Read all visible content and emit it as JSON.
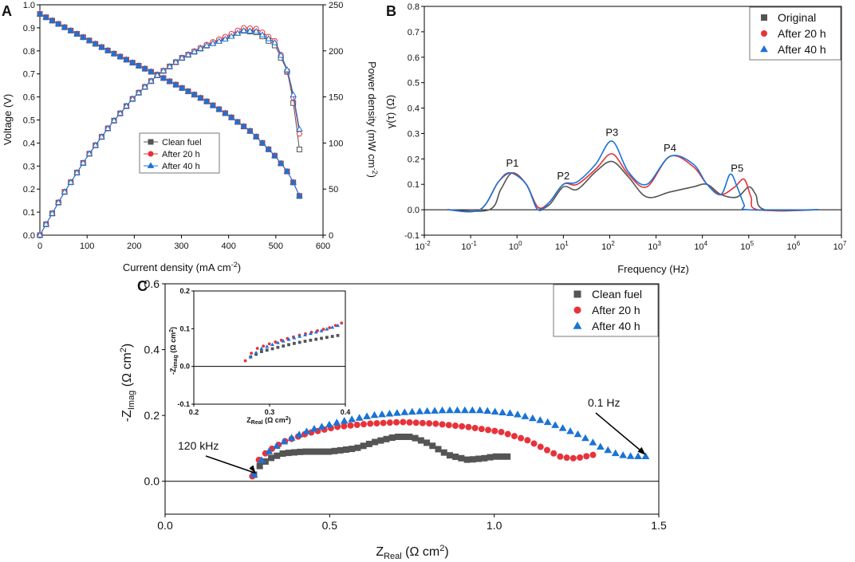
{
  "colors": {
    "clean": "#555555",
    "after20": "#e8323a",
    "after40": "#1a73d6",
    "axis": "#000000"
  },
  "chart_data": [
    {
      "panel": "A",
      "type": "line",
      "xlabel": "Current density (mA cm⁻²)",
      "ylabel_left": "Voltage (V)",
      "ylabel_right": "Power density (mW cm⁻²)",
      "xlim": [
        0,
        600
      ],
      "ylim_left": [
        0,
        1.0
      ],
      "ylim_right": [
        0,
        250
      ],
      "x_ticks": [
        "0",
        "100",
        "200",
        "300",
        "400",
        "500",
        "600"
      ],
      "y_left_ticks": [
        "0.0",
        "0.1",
        "0.2",
        "0.3",
        "0.4",
        "0.5",
        "0.6",
        "0.7",
        "0.8",
        "0.9",
        "1.0"
      ],
      "y_right_ticks": [
        "0",
        "50",
        "100",
        "150",
        "200",
        "250"
      ],
      "legend": [
        "Clean fuel",
        "After 20 h",
        "After 40 h"
      ],
      "voltage_curve": {
        "x": [
          0,
          50,
          100,
          150,
          200,
          250,
          300,
          350,
          400,
          450,
          500,
          530,
          550
        ],
        "y": [
          0.96,
          0.905,
          0.85,
          0.795,
          0.745,
          0.695,
          0.64,
          0.585,
          0.52,
          0.445,
          0.34,
          0.26,
          0.17
        ]
      },
      "power_curves": {
        "x": [
          0,
          50,
          100,
          150,
          200,
          250,
          300,
          350,
          400,
          430,
          460,
          500,
          530,
          550
        ],
        "clean": [
          0,
          45,
          85,
          120,
          150,
          174,
          192,
          205,
          215,
          222,
          220,
          205,
          170,
          93
        ],
        "after20": [
          0,
          45,
          85,
          120,
          150,
          174,
          192,
          206,
          217,
          225,
          224,
          210,
          170,
          110
        ],
        "after40": [
          0,
          45,
          85,
          120,
          150,
          174,
          192,
          205,
          214,
          222,
          221,
          208,
          172,
          115
        ]
      }
    },
    {
      "panel": "B",
      "type": "line",
      "xlabel": "Frequency (Hz)",
      "ylabel": "γ(τ) (Ω)",
      "xlim_log10": [
        -2,
        7
      ],
      "ylim": [
        -0.1,
        0.8
      ],
      "x_ticks_exp": [
        "-2",
        "-1",
        "0",
        "1",
        "2",
        "3",
        "4",
        "5",
        "6",
        "7"
      ],
      "y_ticks": [
        "-0.1",
        "0.0",
        "0.1",
        "0.2",
        "0.3",
        "0.4",
        "0.5",
        "0.6",
        "0.7",
        "0.8"
      ],
      "legend": [
        "Original",
        "After 20 h",
        "After 40 h"
      ],
      "annotations": [
        {
          "label": "P1",
          "log10_f": -0.1,
          "y": 0.17
        },
        {
          "label": "P2",
          "log10_f": 1.0,
          "y": 0.12
        },
        {
          "label": "P3",
          "log10_f": 2.05,
          "y": 0.29
        },
        {
          "label": "P4",
          "log10_f": 3.3,
          "y": 0.23
        },
        {
          "label": "P5",
          "log10_f": 4.75,
          "y": 0.15
        }
      ],
      "series": [
        {
          "name": "Original",
          "log10_f": [
            -0.6,
            -0.35,
            -0.1,
            0.2,
            0.45,
            0.7,
            1.0,
            1.3,
            1.7,
            2.05,
            2.4,
            2.8,
            3.3,
            3.8,
            4.1,
            4.4,
            4.75,
            5.0,
            5.15,
            5.35
          ],
          "values": [
            0,
            0.08,
            0.145,
            0.1,
            0.01,
            0.02,
            0.09,
            0.08,
            0.15,
            0.19,
            0.13,
            0.05,
            0.07,
            0.09,
            0.1,
            0.06,
            0.05,
            0.09,
            0.06,
            0
          ]
        },
        {
          "name": "After 20 h",
          "log10_f": [
            -0.8,
            -0.4,
            -0.1,
            0.2,
            0.45,
            0.7,
            1.0,
            1.3,
            1.7,
            2.05,
            2.4,
            2.8,
            3.3,
            3.8,
            4.1,
            4.4,
            4.7,
            4.9,
            5.05,
            5.2
          ],
          "values": [
            0,
            0.11,
            0.145,
            0.1,
            0.01,
            0.03,
            0.1,
            0.1,
            0.16,
            0.22,
            0.14,
            0.09,
            0.21,
            0.17,
            0.1,
            0.06,
            0.09,
            0.12,
            0.05,
            0
          ]
        },
        {
          "name": "After 40 h",
          "log10_f": [
            -0.8,
            -0.4,
            -0.15,
            0.2,
            0.45,
            0.7,
            1.0,
            1.3,
            1.7,
            2.05,
            2.4,
            2.8,
            3.3,
            3.8,
            4.1,
            4.4,
            4.6,
            4.75,
            4.9,
            5.0
          ],
          "values": [
            0,
            0.11,
            0.145,
            0.1,
            0.0,
            0.03,
            0.1,
            0.11,
            0.18,
            0.27,
            0.15,
            0.1,
            0.21,
            0.18,
            0.1,
            0.06,
            0.14,
            0.09,
            0.02,
            0
          ]
        }
      ]
    },
    {
      "panel": "C",
      "type": "scatter",
      "xlabel": "Z_Real (Ω cm²)",
      "ylabel": "-Z_Imag (Ω cm²)",
      "xlim": [
        0,
        1.5
      ],
      "ylim": [
        -0.1,
        0.6
      ],
      "x_ticks": [
        "0.0",
        "0.5",
        "1.0",
        "1.5"
      ],
      "y_ticks": [
        "0.0",
        "0.2",
        "0.4",
        "0.6"
      ],
      "legend": [
        "Clean fuel",
        "After 20 h",
        "After 40 h"
      ],
      "annotations": [
        {
          "label": "120 kHz",
          "x": 0.27,
          "y": 0.015
        },
        {
          "label": "0.1 Hz",
          "x": 1.46,
          "y": 0.075
        }
      ],
      "series": [
        {
          "name": "Clean fuel",
          "x": [
            0.27,
            0.29,
            0.32,
            0.36,
            0.42,
            0.5,
            0.58,
            0.64,
            0.7,
            0.75,
            0.8,
            0.86,
            0.92,
            0.97,
            1.0,
            1.04
          ],
          "y": [
            0.02,
            0.05,
            0.07,
            0.085,
            0.09,
            0.09,
            0.1,
            0.12,
            0.135,
            0.135,
            0.115,
            0.08,
            0.065,
            0.07,
            0.075,
            0.075
          ]
        },
        {
          "name": "After 20 h",
          "x": [
            0.265,
            0.28,
            0.31,
            0.36,
            0.43,
            0.52,
            0.62,
            0.72,
            0.82,
            0.92,
            1.02,
            1.1,
            1.16,
            1.2,
            1.23,
            1.25,
            1.3
          ],
          "y": [
            0.015,
            0.06,
            0.09,
            0.12,
            0.145,
            0.165,
            0.175,
            0.18,
            0.175,
            0.165,
            0.15,
            0.125,
            0.095,
            0.075,
            0.07,
            0.07,
            0.08
          ]
        },
        {
          "name": "After 40 h",
          "x": [
            0.27,
            0.29,
            0.32,
            0.37,
            0.44,
            0.53,
            0.63,
            0.74,
            0.85,
            0.96,
            1.06,
            1.16,
            1.26,
            1.33,
            1.38,
            1.42,
            1.46
          ],
          "y": [
            0.02,
            0.06,
            0.095,
            0.125,
            0.155,
            0.18,
            0.2,
            0.21,
            0.215,
            0.215,
            0.205,
            0.18,
            0.14,
            0.1,
            0.08,
            0.075,
            0.075
          ]
        }
      ],
      "inset": {
        "xlabel": "Z_Real (Ω cm²)",
        "ylabel": "-Z_imag (Ω cm²)",
        "xlim": [
          0.2,
          0.4
        ],
        "ylim": [
          -0.1,
          0.2
        ],
        "x_ticks": [
          "0.2",
          "0.3",
          "0.4"
        ],
        "y_ticks": [
          "-0.1",
          "0.0",
          "0.1",
          "0.2"
        ],
        "series": [
          {
            "name": "Clean fuel",
            "x": [
              0.275,
              0.29,
              0.31,
              0.33,
              0.35,
              0.37,
              0.39
            ],
            "y": [
              0.025,
              0.04,
              0.05,
              0.06,
              0.068,
              0.075,
              0.082
            ]
          },
          {
            "name": "After 20 h",
            "x": [
              0.268,
              0.28,
              0.3,
              0.32,
              0.34,
              0.36,
              0.38,
              0.395
            ],
            "y": [
              0.015,
              0.045,
              0.06,
              0.072,
              0.083,
              0.093,
              0.103,
              0.115
            ]
          },
          {
            "name": "After 40 h",
            "x": [
              0.275,
              0.29,
              0.31,
              0.33,
              0.35,
              0.37,
              0.39
            ],
            "y": [
              0.025,
              0.048,
              0.062,
              0.074,
              0.085,
              0.095,
              0.108
            ]
          }
        ]
      }
    }
  ],
  "labels": {
    "panel_a": "A",
    "panel_b": "B",
    "panel_c": "C",
    "a_xlabel_main": "Current density (mA cm",
    "a_xlabel_sup": "-2",
    "a_xlabel_end": ")",
    "a_ylabel_left": "Voltage (V)",
    "a_ylabel_right_main": "Power density (mW cm",
    "a_ylabel_right_sup": "-2",
    "a_ylabel_right_end": ")",
    "b_xlabel": "Frequency (Hz)",
    "b_ylabel": "γ(τ) (Ω)",
    "c_xlabel_main": "Z",
    "c_xlabel_sub": "Real",
    "c_xlabel_end": " (Ω cm",
    "c_xlabel_sup": "2",
    "c_xlabel_close": ")",
    "c_ylabel_main": "-Z",
    "c_ylabel_sub": "Imag",
    "c_ylabel_end": " (Ω cm",
    "c_ylabel_sup": "2",
    "c_ylabel_close": ")",
    "inset_xlabel_main": "Z",
    "inset_xlabel_sub": "Real",
    "inset_xlabel_end": " (Ω cm",
    "inset_xlabel_sup": "2",
    "inset_xlabel_close": ")",
    "inset_ylabel_main": "-Z",
    "inset_ylabel_sub": "imag",
    "inset_ylabel_end": " (Ω cm",
    "inset_ylabel_sup": "2",
    "inset_ylabel_close": ")",
    "b_tick_base": "10"
  }
}
